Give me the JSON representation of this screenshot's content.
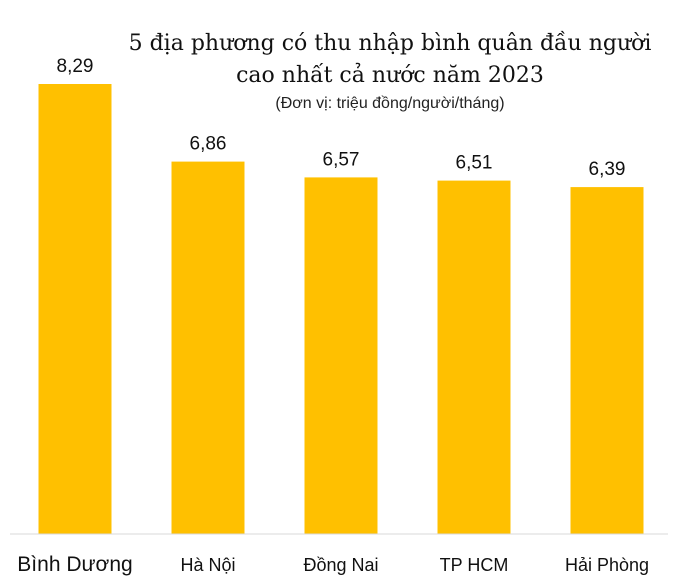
{
  "chart_data": {
    "type": "bar",
    "title_lines": [
      "5 địa phương có thu nhập bình quân đầu người",
      "cao nhất cả nước năm 2023"
    ],
    "subtitle": "(Đơn vị: triệu đồng/người/tháng)",
    "categories": [
      "Bình Dương",
      "Hà Nội",
      "Đồng Nai",
      "TP HCM",
      "Hải Phòng"
    ],
    "values": [
      8.29,
      6.86,
      6.57,
      6.51,
      6.39
    ],
    "value_labels": [
      "8,29",
      "6,86",
      "6,57",
      "6,51",
      "6,39"
    ],
    "ylim": [
      0,
      8.29
    ],
    "grid": false,
    "bar_color": "#FFC000",
    "axis_color": "#D9D9D9"
  }
}
